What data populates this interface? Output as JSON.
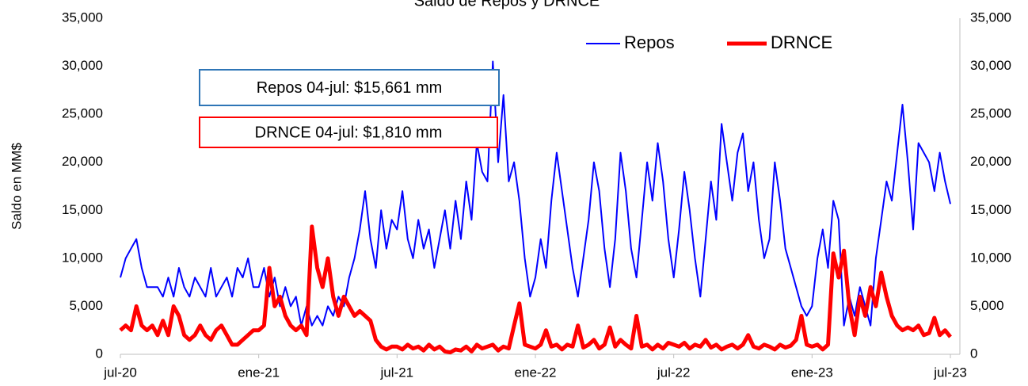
{
  "chart_data": {
    "type": "line",
    "title": "Saldo de Repos y DRNCE",
    "y_label": "Saldo en MM$",
    "categories": [
      "jul-20",
      null,
      null,
      null,
      null,
      null,
      null,
      null,
      null,
      null,
      null,
      null,
      null,
      null,
      null,
      null,
      null,
      null,
      null,
      null,
      null,
      null,
      null,
      null,
      null,
      null,
      "ene-21",
      null,
      null,
      null,
      null,
      null,
      null,
      null,
      null,
      null,
      null,
      null,
      null,
      null,
      null,
      null,
      null,
      null,
      null,
      null,
      null,
      null,
      null,
      null,
      null,
      null,
      "jul-21",
      null,
      null,
      null,
      null,
      null,
      null,
      null,
      null,
      null,
      null,
      null,
      null,
      null,
      null,
      null,
      null,
      null,
      null,
      null,
      null,
      null,
      null,
      null,
      null,
      null,
      "ene-22",
      null,
      null,
      null,
      null,
      null,
      null,
      null,
      null,
      null,
      null,
      null,
      null,
      null,
      null,
      null,
      null,
      null,
      null,
      null,
      null,
      null,
      null,
      null,
      null,
      null,
      "jul-22",
      null,
      null,
      null,
      null,
      null,
      null,
      null,
      null,
      null,
      null,
      null,
      null,
      null,
      null,
      null,
      null,
      null,
      null,
      null,
      null,
      null,
      null,
      null,
      null,
      null,
      "ene-23",
      null,
      null,
      null,
      null,
      null,
      null,
      null,
      null,
      null,
      null,
      null,
      null,
      null,
      null,
      null,
      null,
      null,
      null,
      null,
      null,
      null,
      null,
      null,
      null,
      null,
      "jul-23"
    ],
    "series": [
      {
        "name": "Repos",
        "color": "#0000ff",
        "width": 2,
        "values": [
          8000,
          10000,
          11000,
          12000,
          9000,
          7000,
          7000,
          7000,
          6000,
          8000,
          6000,
          9000,
          7000,
          6000,
          8000,
          7000,
          6000,
          9000,
          6000,
          7000,
          8000,
          6000,
          9000,
          8000,
          10000,
          7000,
          7000,
          9000,
          6000,
          8000,
          5000,
          7000,
          5000,
          6000,
          3000,
          5000,
          3000,
          4000,
          3000,
          5000,
          4000,
          6000,
          5000,
          8000,
          10000,
          13000,
          17000,
          12000,
          9000,
          15000,
          11000,
          14000,
          13000,
          17000,
          12000,
          10000,
          14000,
          11000,
          13000,
          9000,
          12000,
          15000,
          11000,
          16000,
          12000,
          18000,
          14000,
          22000,
          19000,
          18000,
          30500,
          20000,
          27000,
          18000,
          20000,
          16000,
          10000,
          6000,
          8000,
          12000,
          9000,
          16000,
          21000,
          17000,
          13000,
          9000,
          6000,
          10000,
          14000,
          20000,
          17000,
          11000,
          7000,
          12000,
          21000,
          17000,
          11000,
          8000,
          14000,
          20000,
          16000,
          22000,
          18000,
          12000,
          8000,
          13000,
          19000,
          15000,
          10000,
          6000,
          12000,
          18000,
          14000,
          24000,
          20000,
          16000,
          21000,
          23000,
          17000,
          20000,
          14000,
          10000,
          12000,
          20000,
          16000,
          11000,
          9000,
          7000,
          5000,
          4000,
          5000,
          10000,
          13000,
          9000,
          16000,
          14000,
          3000,
          6000,
          4000,
          7000,
          5000,
          3000,
          10000,
          14000,
          18000,
          16000,
          21000,
          26000,
          20000,
          13000,
          22000,
          21000,
          20000,
          17000,
          21000,
          18000,
          15661
        ]
      },
      {
        "name": "DRNCE",
        "color": "#ff0000",
        "width": 5,
        "values": [
          2500,
          3000,
          2500,
          5000,
          3000,
          2500,
          3000,
          2000,
          3500,
          2000,
          5000,
          4000,
          2000,
          1500,
          2000,
          3000,
          2000,
          1500,
          2500,
          3000,
          2000,
          1000,
          1000,
          1500,
          2000,
          2500,
          2500,
          3000,
          9000,
          5000,
          6000,
          4000,
          3000,
          2500,
          3000,
          2000,
          13300,
          9000,
          7000,
          10000,
          6000,
          4000,
          6000,
          5000,
          4000,
          4500,
          4000,
          3500,
          1500,
          800,
          500,
          800,
          800,
          500,
          1000,
          600,
          800,
          400,
          1000,
          500,
          800,
          300,
          200,
          500,
          400,
          800,
          300,
          1000,
          600,
          800,
          1000,
          400,
          800,
          600,
          3000,
          5300,
          1000,
          800,
          600,
          1000,
          2500,
          800,
          1000,
          500,
          1000,
          800,
          3000,
          700,
          1000,
          1500,
          600,
          1000,
          2800,
          800,
          1500,
          1000,
          600,
          4000,
          800,
          1000,
          500,
          1000,
          600,
          1200,
          1000,
          800,
          1200,
          600,
          1000,
          800,
          1500,
          700,
          1000,
          500,
          800,
          1000,
          600,
          1000,
          2000,
          800,
          600,
          1000,
          800,
          500,
          1000,
          700,
          900,
          1500,
          4000,
          1000,
          800,
          1000,
          500,
          1000,
          10500,
          8000,
          10800,
          5000,
          2000,
          6000,
          4000,
          7000,
          5000,
          8500,
          6000,
          4000,
          3000,
          2500,
          2800,
          2500,
          3000,
          2000,
          2200,
          3800,
          2000,
          2500,
          1810
        ]
      }
    ],
    "ylim": [
      0,
      35000
    ],
    "yticks": [
      0,
      {
        "value": 5000,
        "label": "5,000"
      },
      {
        "value": 10000,
        "label": "10,000"
      },
      {
        "value": 15000,
        "label": "15,000"
      },
      {
        "value": 20000,
        "label": "20,000"
      },
      {
        "value": 25000,
        "label": "25,000"
      },
      {
        "value": 30000,
        "label": "30,000"
      },
      {
        "value": 35000,
        "label": "35,000"
      }
    ],
    "annotations": [
      {
        "text": "Repos 04-jul: $15,661 mm",
        "color": "#2e75b6"
      },
      {
        "text": "DRNCE 04-jul: $1,810 mm",
        "color": "#ff0000"
      }
    ]
  }
}
